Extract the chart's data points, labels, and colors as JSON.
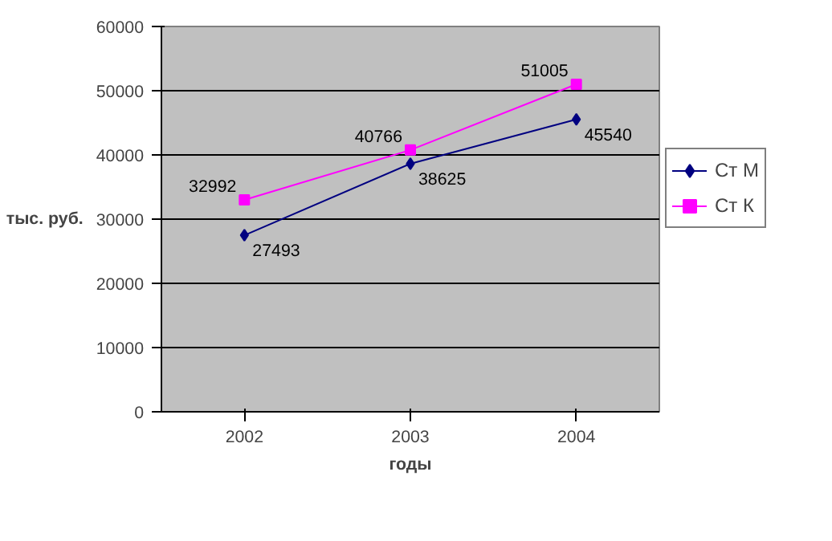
{
  "chart_data": {
    "type": "line",
    "xlabel": "годы",
    "ylabel": "тыс. руб.",
    "categories": [
      "2002",
      "2003",
      "2004"
    ],
    "series": [
      {
        "name": "Ст М",
        "color": "#000080",
        "values": [
          27493,
          38625,
          45540
        ],
        "marker": "diamond"
      },
      {
        "name": "Ст К",
        "color": "#ff00ff",
        "values": [
          32992,
          40766,
          51005
        ],
        "marker": "square"
      }
    ],
    "ylim": [
      0,
      60000
    ],
    "yticks": [
      0,
      10000,
      20000,
      30000,
      40000,
      50000,
      60000
    ],
    "grid": "y",
    "legend": "right",
    "data_labels": true,
    "line_style": "solid"
  }
}
